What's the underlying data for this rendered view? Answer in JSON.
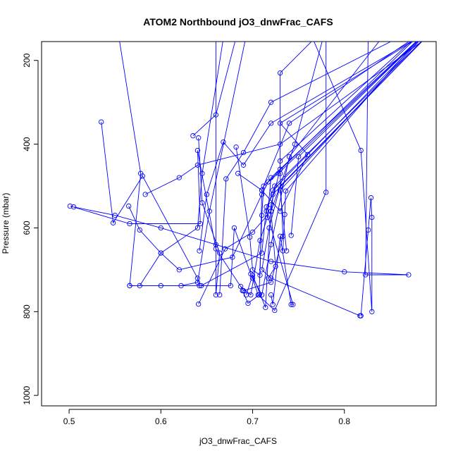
{
  "chart_data": {
    "type": "line",
    "title": "ATOM2 Northbound jO3_dnwFrac_CAFS",
    "xlabel": "jO3_dnwFrac_CAFS",
    "ylabel": "Pressure (mbar)",
    "xlim": [
      0.47,
      0.9
    ],
    "ylim": [
      1025,
      155
    ],
    "y_reversed": true,
    "grid": false,
    "series_color": "#0000ff",
    "x_ticks": [
      {
        "value": 0.5,
        "label": "0.5"
      },
      {
        "value": 0.6,
        "label": "0.6"
      },
      {
        "value": 0.7,
        "label": "0.7"
      },
      {
        "value": 0.8,
        "label": "0.8"
      }
    ],
    "y_ticks": [
      {
        "value": 200,
        "label": "200"
      },
      {
        "value": 400,
        "label": "400"
      },
      {
        "value": 600,
        "label": "600"
      },
      {
        "value": 800,
        "label": "800"
      },
      {
        "value": 1000,
        "label": "1000"
      }
    ],
    "series": [
      {
        "points": [
          [
            0.551,
            100
          ],
          [
            0.578,
            470
          ],
          [
            0.566,
            738
          ],
          [
            0.622,
            738
          ],
          [
            0.64,
            730
          ],
          [
            0.653,
            560
          ],
          [
            0.695,
            120
          ]
        ]
      },
      {
        "points": [
          [
            0.535,
            347
          ],
          [
            0.548,
            588
          ],
          [
            0.58,
            476
          ],
          [
            0.64,
            720
          ],
          [
            0.642,
            738
          ],
          [
            0.676,
            738
          ],
          [
            0.68,
            600
          ],
          [
            0.698,
            710
          ],
          [
            0.71,
            760
          ],
          [
            0.72,
            640
          ],
          [
            0.74,
            430
          ],
          [
            0.85,
            120
          ]
        ]
      },
      {
        "points": [
          [
            0.501,
            548
          ],
          [
            0.566,
            590
          ],
          [
            0.643,
            590
          ],
          [
            0.64,
            415
          ],
          [
            0.66,
            650
          ],
          [
            0.69,
            750
          ],
          [
            0.72,
            730
          ],
          [
            0.733,
            620
          ],
          [
            0.73,
            470
          ],
          [
            0.73,
            440
          ],
          [
            0.9,
            100
          ]
        ]
      },
      {
        "points": [
          [
            0.565,
            548
          ],
          [
            0.577,
            605
          ],
          [
            0.6,
            660
          ],
          [
            0.62,
            700
          ],
          [
            0.678,
            670
          ],
          [
            0.71,
            520
          ],
          [
            0.717,
            490
          ],
          [
            0.728,
            470
          ],
          [
            0.9,
            110
          ]
        ]
      },
      {
        "points": [
          [
            0.566,
            738
          ],
          [
            0.6,
            738
          ],
          [
            0.644,
            738
          ],
          [
            0.71,
            660
          ],
          [
            0.715,
            550
          ],
          [
            0.722,
            520
          ],
          [
            0.9,
            120
          ]
        ]
      },
      {
        "points": [
          [
            0.577,
            738
          ],
          [
            0.6,
            660
          ],
          [
            0.64,
            600
          ],
          [
            0.645,
            470
          ],
          [
            0.67,
            120
          ]
        ]
      },
      {
        "points": [
          [
            0.583,
            520
          ],
          [
            0.62,
            480
          ],
          [
            0.64,
            450
          ],
          [
            0.73,
            400
          ],
          [
            0.9,
            130
          ]
        ]
      },
      {
        "points": [
          [
            0.505,
            550
          ],
          [
            0.55,
            570
          ],
          [
            0.6,
            600
          ],
          [
            0.66,
            640
          ],
          [
            0.72,
            680
          ],
          [
            0.8,
            705
          ],
          [
            0.87,
            712
          ],
          [
            0.823,
            712
          ],
          [
            0.826,
            130
          ]
        ]
      },
      {
        "points": [
          [
            0.635,
            380
          ],
          [
            0.66,
            330
          ],
          [
            0.685,
            120
          ]
        ]
      },
      {
        "points": [
          [
            0.641,
            385
          ],
          [
            0.645,
            540
          ],
          [
            0.664,
            660
          ],
          [
            0.66,
            760
          ],
          [
            0.66,
            150
          ]
        ]
      },
      {
        "points": [
          [
            0.642,
            655
          ],
          [
            0.65,
            520
          ],
          [
            0.668,
            395
          ],
          [
            0.69,
            450
          ],
          [
            0.72,
            350
          ],
          [
            0.9,
            120
          ]
        ]
      },
      {
        "points": [
          [
            0.641,
            782
          ],
          [
            0.67,
            650
          ],
          [
            0.7,
            610
          ],
          [
            0.72,
            560
          ],
          [
            0.746,
            400
          ],
          [
            0.78,
            120
          ]
        ]
      },
      {
        "points": [
          [
            0.664,
            760
          ],
          [
            0.671,
            483
          ],
          [
            0.69,
            420
          ],
          [
            0.72,
            300
          ],
          [
            0.9,
            100
          ]
        ]
      },
      {
        "points": [
          [
            0.682,
            407
          ],
          [
            0.697,
            622
          ],
          [
            0.7,
            700
          ],
          [
            0.708,
            713
          ],
          [
            0.71,
            510
          ],
          [
            0.74,
            350
          ],
          [
            0.9,
            110
          ]
        ]
      },
      {
        "points": [
          [
            0.684,
            470
          ],
          [
            0.71,
            510
          ],
          [
            0.73,
            560
          ],
          [
            0.76,
            425
          ],
          [
            0.73,
            350
          ],
          [
            0.9,
            120
          ]
        ]
      },
      {
        "points": [
          [
            0.687,
            740
          ],
          [
            0.698,
            760
          ],
          [
            0.708,
            630
          ],
          [
            0.716,
            575
          ],
          [
            0.72,
            480
          ],
          [
            0.9,
            110
          ]
        ]
      },
      {
        "points": [
          [
            0.689,
            750
          ],
          [
            0.695,
            780
          ],
          [
            0.707,
            760
          ],
          [
            0.71,
            570
          ],
          [
            0.712,
            500
          ],
          [
            0.9,
            100
          ]
        ]
      },
      {
        "points": [
          [
            0.693,
            760
          ],
          [
            0.7,
            713
          ],
          [
            0.714,
            790
          ],
          [
            0.72,
            545
          ],
          [
            0.73,
            460
          ],
          [
            0.73,
            230
          ],
          [
            0.78,
            120
          ]
        ]
      },
      {
        "points": [
          [
            0.7,
            720
          ],
          [
            0.706,
            760
          ],
          [
            0.724,
            797
          ],
          [
            0.78,
            515
          ],
          [
            0.78,
            120
          ]
        ]
      },
      {
        "points": [
          [
            0.717,
            720
          ],
          [
            0.725,
            692
          ],
          [
            0.72,
            560
          ],
          [
            0.724,
            500
          ],
          [
            0.9,
            120
          ]
        ]
      },
      {
        "points": [
          [
            0.72,
            760
          ],
          [
            0.722,
            783
          ],
          [
            0.73,
            620
          ],
          [
            0.742,
            783
          ],
          [
            0.744,
            783
          ],
          [
            0.715,
            560
          ],
          [
            0.722,
            510
          ],
          [
            0.9,
            110
          ]
        ]
      },
      {
        "points": [
          [
            0.733,
            655
          ],
          [
            0.735,
            568
          ],
          [
            0.736,
            512
          ],
          [
            0.9,
            100
          ]
        ]
      },
      {
        "points": [
          [
            0.742,
            618
          ],
          [
            0.75,
            430
          ],
          [
            0.9,
            110
          ]
        ]
      },
      {
        "points": [
          [
            0.737,
            655
          ],
          [
            0.73,
            510
          ],
          [
            0.9,
            110
          ]
        ]
      },
      {
        "points": [
          [
            0.817,
            810
          ],
          [
            0.72,
            720
          ],
          [
            0.71,
            700
          ],
          [
            0.718,
            600
          ],
          [
            0.73,
            500
          ],
          [
            0.9,
            120
          ]
        ]
      },
      {
        "points": [
          [
            0.818,
            810
          ],
          [
            0.826,
            605
          ],
          [
            0.829,
            528
          ],
          [
            0.83,
            575
          ],
          [
            0.83,
            800
          ],
          [
            0.818,
            415
          ],
          [
            0.76,
            120
          ]
        ]
      }
    ]
  }
}
